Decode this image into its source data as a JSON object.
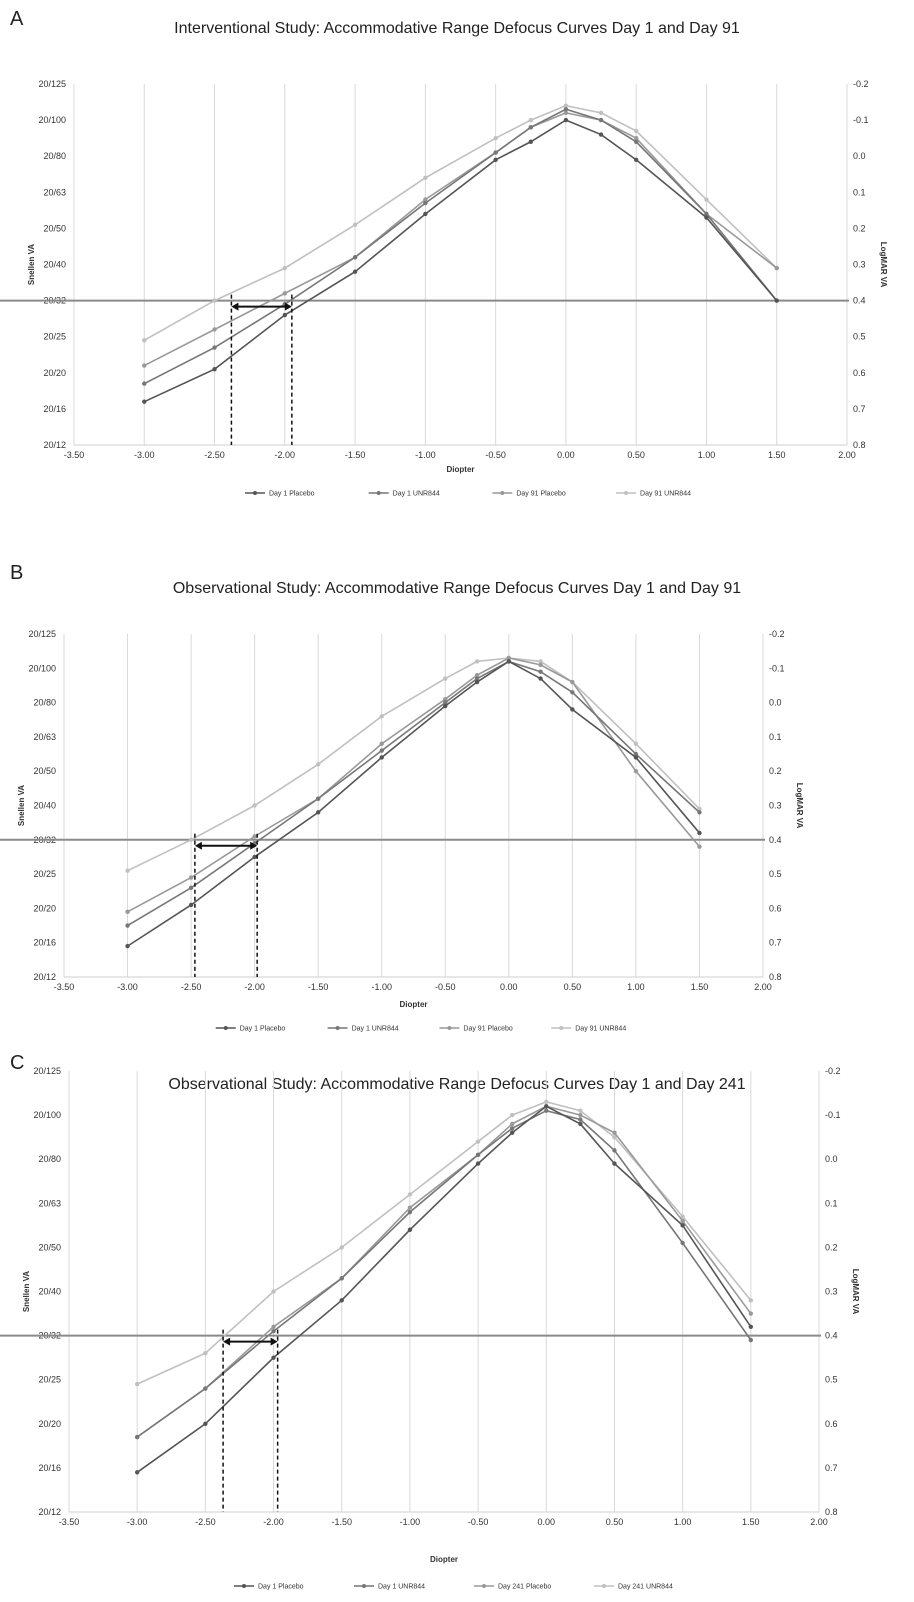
{
  "chart_data": [
    {
      "type": "line",
      "panel_label": "A",
      "title": "Interventional Study: Accommodative Range Defocus Curves Day 1 and Day 91",
      "xlabel": "Diopter",
      "ylabel_left": "Snellen VA",
      "ylabel_right": "LogMAR VA",
      "xlim": [
        -3.5,
        2.0
      ],
      "x_ticks": [
        "-3.50",
        "-3.00",
        "-2.50",
        "-2.00",
        "-1.50",
        "-1.00",
        "-0.50",
        "0.00",
        "0.50",
        "1.00",
        "1.50",
        "2.00"
      ],
      "ylim_logmar": [
        -0.2,
        0.8
      ],
      "left_ticks": [
        "20/125",
        "20/100",
        "20/80",
        "20/63",
        "20/50",
        "20/40",
        "20/32",
        "20/25",
        "20/20",
        "20/16",
        "20/12"
      ],
      "right_ticks": [
        "-0.2",
        "-0.1",
        "0.0",
        "0.1",
        "0.2",
        "0.3",
        "0.4",
        "0.5",
        "0.6",
        "0.7",
        "0.8"
      ],
      "grid": true,
      "legend_position": "bottom",
      "threshold_logmar": 0.4,
      "threshold_marks": [
        -2.38,
        -1.95
      ],
      "x": [
        -3.0,
        -2.5,
        -2.0,
        -1.5,
        -1.0,
        -0.5,
        -0.25,
        0.0,
        0.25,
        0.5,
        1.0,
        1.5
      ],
      "series": [
        {
          "name": "Day 1 Placebo",
          "color": "#555555",
          "values": [
            0.68,
            0.59,
            0.44,
            0.32,
            0.16,
            0.01,
            -0.04,
            -0.1,
            -0.06,
            0.01,
            0.17,
            0.4
          ]
        },
        {
          "name": "Day 1 UNR844",
          "color": "#777777",
          "values": [
            0.63,
            0.53,
            0.41,
            0.28,
            0.13,
            -0.01,
            -0.08,
            -0.13,
            -0.1,
            -0.04,
            0.16,
            0.4
          ]
        },
        {
          "name": "Day 91 Placebo",
          "color": "#999999",
          "values": [
            0.58,
            0.48,
            0.38,
            0.28,
            0.12,
            -0.01,
            -0.08,
            -0.12,
            -0.1,
            -0.05,
            0.16,
            0.31
          ]
        },
        {
          "name": "Day 91 UNR844",
          "color": "#c0c0c0",
          "values": [
            0.51,
            0.4,
            0.31,
            0.19,
            0.06,
            -0.05,
            -0.1,
            -0.14,
            -0.12,
            -0.07,
            0.12,
            0.31
          ]
        }
      ]
    },
    {
      "type": "line",
      "panel_label": "B",
      "title": "Observational Study: Accommodative Range Defocus Curves Day 1 and Day 91",
      "xlabel": "Diopter",
      "ylabel_left": "Snellen VA",
      "ylabel_right": "LogMAR VA",
      "xlim": [
        -3.5,
        2.0
      ],
      "x_ticks": [
        "-3.50",
        "-3.00",
        "-2.50",
        "-2.00",
        "-1.50",
        "-1.00",
        "-0.50",
        "0.00",
        "0.50",
        "1.00",
        "1.50",
        "2.00"
      ],
      "ylim_logmar": [
        -0.2,
        0.8
      ],
      "left_ticks": [
        "20/125",
        "20/100",
        "20/80",
        "20/63",
        "20/50",
        "20/40",
        "20/32",
        "20/25",
        "20/20",
        "20/16",
        "20/12"
      ],
      "right_ticks": [
        "-0.2",
        "-0.1",
        "0.0",
        "0.1",
        "0.2",
        "0.3",
        "0.4",
        "0.5",
        "0.6",
        "0.7",
        "0.8"
      ],
      "grid": true,
      "legend_position": "bottom",
      "threshold_logmar": 0.4,
      "threshold_marks": [
        -2.47,
        -1.98
      ],
      "x": [
        -3.0,
        -2.5,
        -2.0,
        -1.5,
        -1.0,
        -0.5,
        -0.25,
        0.0,
        0.25,
        0.5,
        1.0,
        1.5
      ],
      "series": [
        {
          "name": "Day 1 Placebo",
          "color": "#555555",
          "values": [
            0.71,
            0.59,
            0.45,
            0.32,
            0.16,
            0.01,
            -0.06,
            -0.12,
            -0.07,
            0.02,
            0.16,
            0.38
          ]
        },
        {
          "name": "Day 1 UNR844",
          "color": "#777777",
          "values": [
            0.65,
            0.54,
            0.41,
            0.28,
            0.14,
            0.0,
            -0.07,
            -0.12,
            -0.09,
            -0.03,
            0.15,
            0.32
          ]
        },
        {
          "name": "Day 91 Placebo",
          "color": "#999999",
          "values": [
            0.61,
            0.51,
            0.39,
            0.28,
            0.12,
            -0.01,
            -0.08,
            -0.13,
            -0.11,
            -0.06,
            0.2,
            0.42
          ]
        },
        {
          "name": "Day 91 UNR844",
          "color": "#c0c0c0",
          "values": [
            0.49,
            0.4,
            0.3,
            0.18,
            0.04,
            -0.07,
            -0.12,
            -0.13,
            -0.12,
            -0.06,
            0.12,
            0.31
          ]
        }
      ]
    },
    {
      "type": "line",
      "panel_label": "C",
      "title": "Observational Study: Accommodative Range Defocus Curves Day 1 and Day 241",
      "xlabel": "Diopter",
      "ylabel_left": "Snellen VA",
      "ylabel_right": "LogMAR VA",
      "xlim": [
        -3.5,
        2.0
      ],
      "x_ticks": [
        "-3.50",
        "-3.00",
        "-2.50",
        "-2.00",
        "-1.50",
        "-1.00",
        "-0.50",
        "0.00",
        "0.50",
        "1.00",
        "1.50",
        "2.00"
      ],
      "ylim_logmar": [
        -0.2,
        0.8
      ],
      "left_ticks": [
        "20/125",
        "20/100",
        "20/80",
        "20/63",
        "20/50",
        "20/40",
        "20/32",
        "20/25",
        "20/20",
        "20/16",
        "20/12"
      ],
      "right_ticks": [
        "-0.2",
        "-0.1",
        "0.0",
        "0.1",
        "0.2",
        "0.3",
        "0.4",
        "0.5",
        "0.6",
        "0.7",
        "0.8"
      ],
      "grid": true,
      "legend_position": "bottom",
      "threshold_logmar": 0.4,
      "threshold_marks": [
        -2.37,
        -1.97
      ],
      "x": [
        -3.0,
        -2.5,
        -2.0,
        -1.5,
        -1.0,
        -0.5,
        -0.25,
        0.0,
        0.25,
        0.5,
        1.0,
        1.5
      ],
      "series": [
        {
          "name": "Day 1 Placebo",
          "color": "#555555",
          "values": [
            0.71,
            0.6,
            0.45,
            0.32,
            0.16,
            0.01,
            -0.06,
            -0.12,
            -0.08,
            0.01,
            0.15,
            0.38
          ]
        },
        {
          "name": "Day 1 UNR844",
          "color": "#777777",
          "values": [
            0.63,
            0.52,
            0.39,
            0.27,
            0.12,
            -0.01,
            -0.07,
            -0.11,
            -0.09,
            -0.02,
            0.19,
            0.41
          ]
        },
        {
          "name": "Day 241 Placebo",
          "color": "#999999",
          "values": [
            0.63,
            0.52,
            0.38,
            0.27,
            0.11,
            -0.01,
            -0.08,
            -0.12,
            -0.1,
            -0.06,
            0.14,
            0.35
          ]
        },
        {
          "name": "Day 241 UNR844",
          "color": "#c0c0c0",
          "values": [
            0.51,
            0.44,
            0.3,
            0.2,
            0.08,
            -0.04,
            -0.1,
            -0.13,
            -0.11,
            -0.05,
            0.13,
            0.32
          ]
        }
      ]
    }
  ]
}
